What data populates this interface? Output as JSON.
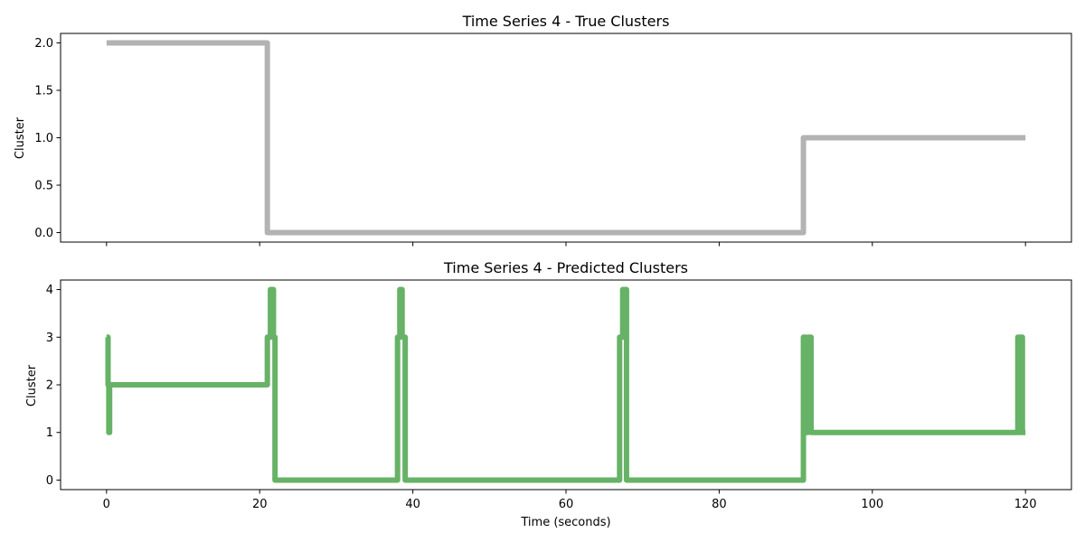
{
  "chart_data": [
    {
      "type": "line",
      "title": "Time Series 4 - True Clusters",
      "xlabel": "",
      "ylabel": "Cluster",
      "xlim": [
        -6,
        126
      ],
      "ylim": [
        -0.1,
        2.1
      ],
      "grid": false,
      "x_ticks": [
        0,
        20,
        40,
        60,
        80,
        100,
        120
      ],
      "x_tick_labels_shown": false,
      "y_ticks": [
        0.0,
        0.5,
        1.0,
        1.5,
        2.0
      ],
      "y_tick_labels": [
        "0.0",
        "0.5",
        "1.0",
        "1.5",
        "2.0"
      ],
      "series": [
        {
          "color": "#b3b3b3",
          "x": [
            0,
            21,
            21,
            91,
            91,
            120
          ],
          "y": [
            2,
            2,
            0,
            0,
            1,
            1
          ]
        }
      ]
    },
    {
      "type": "line",
      "title": "Time Series 4 - Predicted Clusters",
      "xlabel": "Time (seconds)",
      "ylabel": "Cluster",
      "xlim": [
        -6,
        126
      ],
      "ylim": [
        -0.2,
        4.2
      ],
      "grid": false,
      "x_ticks": [
        0,
        20,
        40,
        60,
        80,
        100,
        120
      ],
      "x_tick_labels": [
        "0",
        "20",
        "40",
        "60",
        "80",
        "100",
        "120"
      ],
      "y_ticks": [
        0,
        1,
        2,
        3,
        4
      ],
      "y_tick_labels": [
        "0",
        "1",
        "2",
        "3",
        "4"
      ],
      "series": [
        {
          "color": "#66b266",
          "x": [
            0,
            0.2,
            0.2,
            0.3,
            0.3,
            0.4,
            0.4,
            21,
            21,
            21.4,
            21.4,
            21.8,
            21.8,
            22,
            22,
            38,
            38,
            38.3,
            38.3,
            38.6,
            38.6,
            39,
            39,
            67,
            67,
            67.4,
            67.4,
            67.9,
            67.9,
            91,
            91,
            91.3,
            91.3,
            91.6,
            91.6,
            92,
            92,
            119,
            119,
            119.2,
            119.2,
            119.4,
            119.4,
            119.6,
            119.6,
            120
          ],
          "y": [
            3,
            3,
            2,
            2,
            1,
            1,
            2,
            2,
            3,
            3,
            4,
            4,
            3,
            3,
            0,
            0,
            3,
            3,
            4,
            4,
            3,
            3,
            0,
            0,
            3,
            3,
            4,
            4,
            0,
            0,
            3,
            3,
            1,
            1,
            3,
            3,
            1,
            1,
            3,
            3,
            1,
            1,
            3,
            3,
            1,
            1
          ]
        }
      ]
    }
  ]
}
